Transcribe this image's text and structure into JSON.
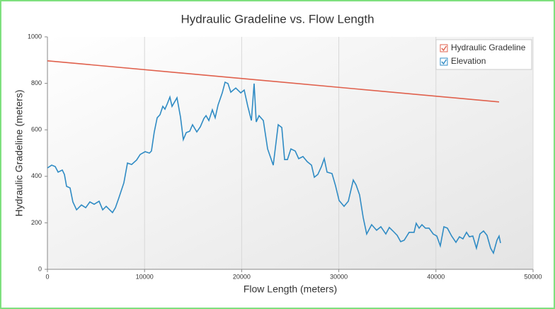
{
  "chart_data": {
    "type": "line",
    "title": "Hydraulic Gradeline vs. Flow Length",
    "xlabel": "Flow Length (meters)",
    "ylabel": "Hydraulic Gradeline (meters)",
    "xlim": [
      0,
      50000
    ],
    "ylim": [
      0,
      1000
    ],
    "xticks": [
      0,
      10000,
      20000,
      30000,
      40000,
      50000
    ],
    "yticks": [
      0,
      200,
      400,
      600,
      800,
      1000
    ],
    "xgrid": true,
    "ygrid": false,
    "legend": "upper right",
    "series": [
      {
        "name": "Hydraulic Gradeline",
        "color": "#e0604c",
        "x": [
          0,
          46500
        ],
        "values": [
          897,
          720
        ]
      },
      {
        "name": "Elevation",
        "color": "#2f8bc4",
        "x": [
          0,
          437,
          800,
          1100,
          1530,
          1750,
          1970,
          2330,
          2620,
          3000,
          3500,
          3940,
          4370,
          4810,
          5320,
          5690,
          6050,
          6410,
          6700,
          7000,
          7360,
          7870,
          8240,
          8670,
          9180,
          9550,
          10060,
          10500,
          10710,
          11000,
          11300,
          11590,
          11880,
          12100,
          12320,
          12610,
          12830,
          13340,
          13700,
          13990,
          14290,
          14650,
          14940,
          15380,
          15740,
          16110,
          16330,
          16620,
          16980,
          17270,
          17570,
          18000,
          18290,
          18590,
          18880,
          19390,
          19900,
          20260,
          20630,
          21000,
          21280,
          21500,
          21790,
          22230,
          22670,
          23250,
          23760,
          24130,
          24420,
          24710,
          25070,
          25510,
          25870,
          26310,
          26750,
          27190,
          27480,
          27840,
          28210,
          28500,
          28790,
          29300,
          29660,
          30030,
          30540,
          30980,
          31490,
          31780,
          32140,
          32510,
          32870,
          33380,
          33890,
          34330,
          34840,
          35200,
          35570,
          36010,
          36370,
          36730,
          37240,
          37750,
          37970,
          38270,
          38560,
          38920,
          39290,
          39720,
          40090,
          40450,
          40820,
          41180,
          41620,
          42060,
          42420,
          42780,
          43150,
          43440,
          43800,
          44170,
          44530,
          44900,
          45260,
          45630,
          45920,
          46280,
          46500,
          46650
        ],
        "values": [
          436,
          448,
          442,
          418,
          427,
          408,
          357,
          350,
          290,
          256,
          277,
          265,
          290,
          280,
          293,
          256,
          271,
          256,
          244,
          265,
          308,
          372,
          457,
          451,
          470,
          494,
          506,
          500,
          509,
          591,
          652,
          665,
          701,
          689,
          710,
          741,
          701,
          738,
          655,
          558,
          588,
          594,
          622,
          591,
          613,
          649,
          661,
          640,
          686,
          652,
          707,
          759,
          805,
          799,
          762,
          780,
          759,
          771,
          701,
          640,
          799,
          634,
          661,
          640,
          518,
          448,
          622,
          610,
          472,
          472,
          518,
          509,
          476,
          485,
          463,
          448,
          396,
          408,
          442,
          476,
          418,
          412,
          360,
          296,
          271,
          293,
          384,
          363,
          320,
          223,
          152,
          192,
          168,
          183,
          152,
          180,
          165,
          146,
          119,
          125,
          159,
          159,
          198,
          177,
          192,
          177,
          177,
          152,
          143,
          101,
          183,
          177,
          143,
          116,
          140,
          131,
          159,
          140,
          143,
          91,
          152,
          165,
          146,
          91,
          70,
          125,
          143,
          113
        ]
      }
    ]
  }
}
